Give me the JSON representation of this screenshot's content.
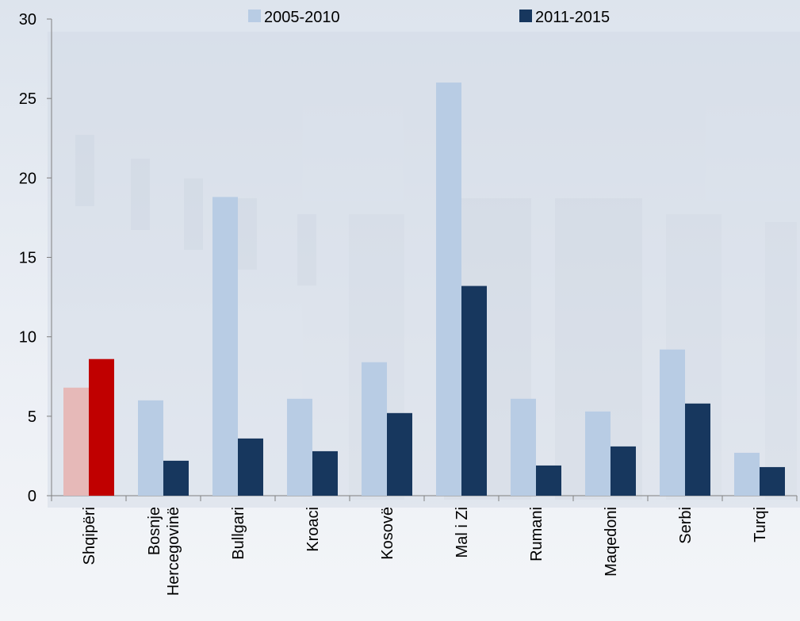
{
  "chart_data": {
    "type": "bar",
    "categories": [
      "Shqipëri",
      "Bosnje Hercegovinë",
      "Bullgari",
      "Kroaci",
      "Kosovë",
      "Mal i Zi",
      "Rumani",
      "Maqedoni",
      "Serbi",
      "Turqi"
    ],
    "category_lines": [
      [
        "Shqipëri"
      ],
      [
        "Bosnje",
        "Hercegovinë"
      ],
      [
        "Bullgari"
      ],
      [
        "Kroaci"
      ],
      [
        "Kosovë"
      ],
      [
        "Mal i Zi"
      ],
      [
        "Rumani"
      ],
      [
        "Maqedoni"
      ],
      [
        "Serbi"
      ],
      [
        "Turqi"
      ]
    ],
    "series": [
      {
        "name": "2005-2010",
        "color": "#b8cce4",
        "highlight_color": "#e6b9b8",
        "values": [
          6.8,
          6.0,
          18.8,
          6.1,
          8.4,
          26.0,
          6.1,
          5.3,
          9.2,
          2.7
        ]
      },
      {
        "name": "2011-2015",
        "color": "#17375e",
        "highlight_color": "#c00000",
        "values": [
          8.6,
          2.2,
          3.6,
          2.8,
          5.2,
          13.2,
          1.9,
          3.1,
          5.8,
          1.8
        ]
      }
    ],
    "highlight_category_index": 0,
    "y_ticks": [
      0,
      5,
      10,
      15,
      20,
      25,
      30
    ],
    "ylim": [
      0,
      30
    ],
    "xlabel": "",
    "ylabel": "",
    "legend_position": "top",
    "grid": false
  }
}
